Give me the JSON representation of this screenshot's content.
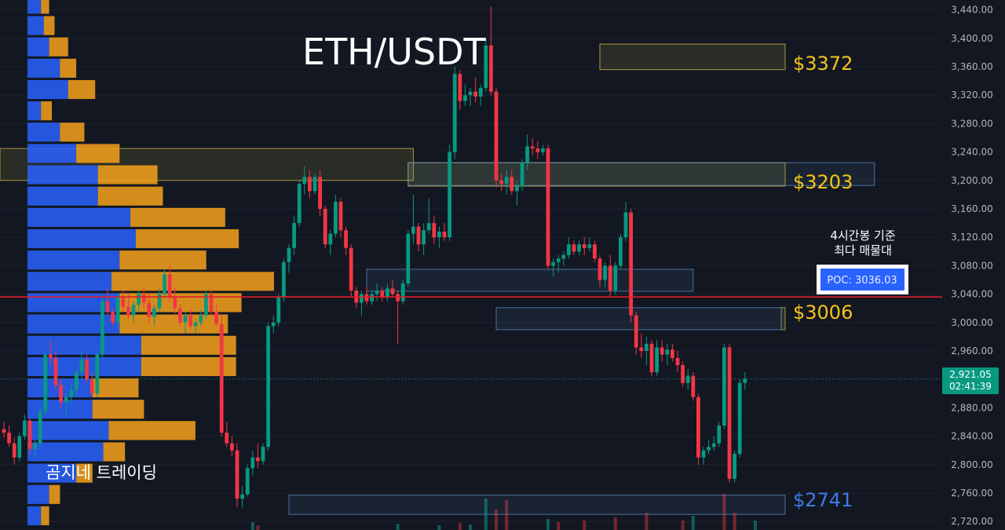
{
  "chart_data": {
    "type": "candlestick",
    "title": "ETH/USDT",
    "watermark": "곰지네 트레이딩",
    "colors": {
      "background": "#131722",
      "up": "#089981",
      "down": "#f23645",
      "volume_profile_up": "#2962ff",
      "volume_profile_down": "#f7a21b",
      "poc_line": "#e11d2b",
      "zone_yellow": "#d8c24a",
      "zone_blue": "#5a8fc7",
      "level_yellow": "#f5c518",
      "level_blue": "#3d7ce8"
    },
    "y_axis": {
      "range": [
        2708,
        3454
      ],
      "ticks": [
        "3,440.00",
        "3,400.00",
        "3,360.00",
        "3,320.00",
        "3,280.00",
        "3,240.00",
        "3,200.00",
        "3,160.00",
        "3,120.00",
        "3,080.00",
        "3,040.00",
        "3,000.00",
        "2,960.00",
        "2,920.00",
        "2,880.00",
        "2,840.00",
        "2,800.00",
        "2,760.00",
        "2,720.00"
      ],
      "tick_values": [
        3440,
        3400,
        3360,
        3320,
        3280,
        3240,
        3200,
        3160,
        3120,
        3080,
        3040,
        3000,
        2960,
        2920,
        2880,
        2840,
        2800,
        2760,
        2720
      ]
    },
    "current_price": {
      "value": 2921.05,
      "label": "2,921.05",
      "countdown": "02:41:39"
    },
    "levels": [
      {
        "label": "$3372",
        "price": 3372,
        "color": "#f5c518"
      },
      {
        "label": "$3203",
        "price": 3203,
        "color": "#f5c518"
      },
      {
        "label": "$3006",
        "price": 3006,
        "color": "#f5c518"
      },
      {
        "label": "$2741",
        "price": 2741,
        "color": "#3d7ce8"
      }
    ],
    "zones": [
      {
        "color": "yellow",
        "low": 3356,
        "high": 3392,
        "from_bar": 115
      },
      {
        "color": "yellow",
        "low": 3192,
        "high": 3225,
        "from_bar": 78
      },
      {
        "color": "yellow",
        "low": 3200,
        "high": 3245,
        "from_bar": -1,
        "to_bar": 79
      },
      {
        "color": "yellow",
        "low": 2990,
        "high": 3021,
        "from_bar": 150
      },
      {
        "color": "blue",
        "low": 3193,
        "high": 3225,
        "from_bar": 78,
        "to_bar": 168
      },
      {
        "color": "blue",
        "low": 3044,
        "high": 3075,
        "from_bar": 70,
        "to_bar": 133
      },
      {
        "color": "blue",
        "low": 2990,
        "high": 3021,
        "from_bar": 95,
        "to_bar": 150
      },
      {
        "color": "blue",
        "low": 2730,
        "high": 2757,
        "from_bar": 55
      }
    ],
    "poc": {
      "price": 3036.03,
      "label": "POC: 3036.03",
      "caption_line1": "4시간봉 기준",
      "caption_line2": "최다 매물대"
    },
    "volume_profile": [
      {
        "price": 3448,
        "up": 5,
        "down": 3
      },
      {
        "price": 3418,
        "up": 6,
        "down": 4
      },
      {
        "price": 3388,
        "up": 8,
        "down": 7
      },
      {
        "price": 3358,
        "up": 12,
        "down": 6
      },
      {
        "price": 3328,
        "up": 15,
        "down": 10
      },
      {
        "price": 3298,
        "up": 5,
        "down": 4
      },
      {
        "price": 3268,
        "up": 12,
        "down": 9
      },
      {
        "price": 3238,
        "up": 18,
        "down": 16
      },
      {
        "price": 3208,
        "up": 26,
        "down": 22
      },
      {
        "price": 3178,
        "up": 26,
        "down": 24
      },
      {
        "price": 3148,
        "up": 38,
        "down": 35
      },
      {
        "price": 3118,
        "up": 40,
        "down": 38
      },
      {
        "price": 3088,
        "up": 34,
        "down": 32
      },
      {
        "price": 3058,
        "up": 31,
        "down": 60
      },
      {
        "price": 3028,
        "up": 34,
        "down": 45
      },
      {
        "price": 2998,
        "up": 34,
        "down": 40
      },
      {
        "price": 2968,
        "up": 42,
        "down": 35
      },
      {
        "price": 2938,
        "up": 42,
        "down": 35
      },
      {
        "price": 2908,
        "up": 24,
        "down": 17
      },
      {
        "price": 2878,
        "up": 24,
        "down": 19
      },
      {
        "price": 2848,
        "up": 30,
        "down": 32
      },
      {
        "price": 2818,
        "up": 28,
        "down": 8
      },
      {
        "price": 2788,
        "up": 18,
        "down": 6
      },
      {
        "price": 2758,
        "up": 8,
        "down": 4
      },
      {
        "price": 2728,
        "up": 5,
        "down": 3
      }
    ],
    "candles": [
      [
        2850,
        2860,
        2838,
        2845
      ],
      [
        2845,
        2855,
        2825,
        2830
      ],
      [
        2830,
        2838,
        2800,
        2810
      ],
      [
        2810,
        2845,
        2805,
        2840
      ],
      [
        2840,
        2870,
        2835,
        2862
      ],
      [
        2862,
        2865,
        2815,
        2822
      ],
      [
        2822,
        2835,
        2810,
        2830
      ],
      [
        2830,
        2880,
        2825,
        2875
      ],
      [
        2875,
        2960,
        2870,
        2955
      ],
      [
        2955,
        2975,
        2940,
        2950
      ],
      [
        2950,
        2960,
        2905,
        2912
      ],
      [
        2912,
        2920,
        2880,
        2888
      ],
      [
        2888,
        2900,
        2870,
        2895
      ],
      [
        2895,
        2915,
        2885,
        2905
      ],
      [
        2905,
        2935,
        2895,
        2930
      ],
      [
        2930,
        2960,
        2920,
        2948
      ],
      [
        2948,
        2955,
        2915,
        2920
      ],
      [
        2920,
        2930,
        2895,
        2900
      ],
      [
        2900,
        2960,
        2895,
        2955
      ],
      [
        2955,
        3040,
        2950,
        3030
      ],
      [
        3030,
        3048,
        3010,
        3015
      ],
      [
        3015,
        3020,
        2995,
        3000
      ],
      [
        3000,
        3040,
        2990,
        3035
      ],
      [
        3035,
        3045,
        3015,
        3022
      ],
      [
        3022,
        3040,
        3005,
        3010
      ],
      [
        3010,
        3030,
        3000,
        3025
      ],
      [
        3025,
        3045,
        3015,
        3040
      ],
      [
        3040,
        3050,
        3020,
        3028
      ],
      [
        3028,
        3040,
        3000,
        3008
      ],
      [
        3008,
        3025,
        2995,
        3020
      ],
      [
        3020,
        3048,
        3015,
        3040
      ],
      [
        3040,
        3075,
        3035,
        3068
      ],
      [
        3068,
        3080,
        3030,
        3035
      ],
      [
        3035,
        3050,
        3012,
        3020
      ],
      [
        3020,
        3025,
        2995,
        3000
      ],
      [
        3000,
        3015,
        2985,
        3010
      ],
      [
        3010,
        3020,
        2990,
        2995
      ],
      [
        2995,
        3005,
        2985,
        3000
      ],
      [
        3000,
        3018,
        2995,
        3010
      ],
      [
        3010,
        3045,
        3005,
        3040
      ],
      [
        3040,
        3045,
        3010,
        3015
      ],
      [
        3015,
        3025,
        2995,
        2998
      ],
      [
        2998,
        3010,
        2840,
        2845
      ],
      [
        2845,
        2860,
        2825,
        2830
      ],
      [
        2830,
        2840,
        2812,
        2820
      ],
      [
        2820,
        2830,
        2740,
        2752
      ],
      [
        2752,
        2770,
        2740,
        2758
      ],
      [
        2758,
        2800,
        2755,
        2795
      ],
      [
        2795,
        2820,
        2785,
        2810
      ],
      [
        2810,
        2830,
        2795,
        2805
      ],
      [
        2805,
        2830,
        2800,
        2825
      ],
      [
        2825,
        3000,
        2820,
        2995
      ],
      [
        2995,
        3010,
        2985,
        3000
      ],
      [
        3000,
        3040,
        2995,
        3035
      ],
      [
        3035,
        3090,
        3030,
        3085
      ],
      [
        3085,
        3110,
        3070,
        3105
      ],
      [
        3105,
        3150,
        3095,
        3140
      ],
      [
        3140,
        3200,
        3135,
        3195
      ],
      [
        3195,
        3220,
        3180,
        3205
      ],
      [
        3205,
        3215,
        3175,
        3185
      ],
      [
        3185,
        3210,
        3180,
        3205
      ],
      [
        3205,
        3215,
        3150,
        3160
      ],
      [
        3160,
        3165,
        3105,
        3110
      ],
      [
        3110,
        3130,
        3095,
        3125
      ],
      [
        3125,
        3180,
        3120,
        3170
      ],
      [
        3170,
        3175,
        3120,
        3130
      ],
      [
        3130,
        3135,
        3095,
        3105
      ],
      [
        3105,
        3110,
        3035,
        3045
      ],
      [
        3045,
        3050,
        3020,
        3028
      ],
      [
        3028,
        3045,
        3010,
        3040
      ],
      [
        3040,
        3050,
        3025,
        3030
      ],
      [
        3030,
        3045,
        3025,
        3040
      ],
      [
        3040,
        3055,
        3030,
        3045
      ],
      [
        3045,
        3050,
        3030,
        3035
      ],
      [
        3035,
        3055,
        3030,
        3048
      ],
      [
        3048,
        3060,
        3035,
        3040
      ],
      [
        3040,
        3045,
        2970,
        3030
      ],
      [
        3030,
        3060,
        3025,
        3055
      ],
      [
        3055,
        3130,
        3050,
        3125
      ],
      [
        3125,
        3180,
        3110,
        3135
      ],
      [
        3135,
        3140,
        3100,
        3110
      ],
      [
        3110,
        3140,
        3095,
        3130
      ],
      [
        3130,
        3175,
        3125,
        3140
      ],
      [
        3140,
        3150,
        3110,
        3120
      ],
      [
        3120,
        3135,
        3105,
        3128
      ],
      [
        3128,
        3140,
        3115,
        3120
      ],
      [
        3120,
        3250,
        3115,
        3240
      ],
      [
        3240,
        3360,
        3230,
        3350
      ],
      [
        3350,
        3355,
        3300,
        3312
      ],
      [
        3312,
        3335,
        3305,
        3320
      ],
      [
        3320,
        3330,
        3305,
        3325
      ],
      [
        3325,
        3345,
        3310,
        3318
      ],
      [
        3318,
        3335,
        3305,
        3330
      ],
      [
        3330,
        3400,
        3325,
        3390
      ],
      [
        3390,
        3445,
        3320,
        3325
      ],
      [
        3325,
        3330,
        3190,
        3200
      ],
      [
        3200,
        3210,
        3185,
        3195
      ],
      [
        3195,
        3215,
        3180,
        3205
      ],
      [
        3205,
        3215,
        3180,
        3185
      ],
      [
        3185,
        3200,
        3165,
        3192
      ],
      [
        3192,
        3230,
        3185,
        3225
      ],
      [
        3225,
        3265,
        3215,
        3248
      ],
      [
        3248,
        3260,
        3235,
        3245
      ],
      [
        3245,
        3255,
        3230,
        3240
      ],
      [
        3240,
        3250,
        3235,
        3245
      ],
      [
        3245,
        3250,
        3075,
        3080
      ],
      [
        3080,
        3090,
        3065,
        3085
      ],
      [
        3085,
        3095,
        3070,
        3090
      ],
      [
        3090,
        3100,
        3080,
        3095
      ],
      [
        3095,
        3120,
        3090,
        3110
      ],
      [
        3110,
        3115,
        3095,
        3100
      ],
      [
        3100,
        3115,
        3095,
        3110
      ],
      [
        3110,
        3120,
        3095,
        3105
      ],
      [
        3105,
        3120,
        3100,
        3110
      ],
      [
        3110,
        3115,
        3085,
        3090
      ],
      [
        3090,
        3095,
        3050,
        3060
      ],
      [
        3060,
        3085,
        3050,
        3080
      ],
      [
        3080,
        3095,
        3035,
        3045
      ],
      [
        3045,
        3085,
        3040,
        3080
      ],
      [
        3080,
        3125,
        3075,
        3120
      ],
      [
        3120,
        3170,
        3115,
        3155
      ],
      [
        3155,
        3160,
        3000,
        3010
      ],
      [
        3010,
        3015,
        2955,
        2965
      ],
      [
        2965,
        2985,
        2950,
        2960
      ],
      [
        2960,
        2980,
        2940,
        2970
      ],
      [
        2970,
        2975,
        2925,
        2930
      ],
      [
        2930,
        2975,
        2925,
        2965
      ],
      [
        2965,
        2975,
        2945,
        2955
      ],
      [
        2955,
        2970,
        2940,
        2962
      ],
      [
        2962,
        2970,
        2945,
        2950
      ],
      [
        2950,
        2960,
        2930,
        2940
      ],
      [
        2940,
        2945,
        2910,
        2915
      ],
      [
        2915,
        2935,
        2905,
        2925
      ],
      [
        2925,
        2930,
        2890,
        2895
      ],
      [
        2895,
        2900,
        2800,
        2810
      ],
      [
        2810,
        2825,
        2800,
        2820
      ],
      [
        2820,
        2835,
        2815,
        2825
      ],
      [
        2825,
        2840,
        2820,
        2830
      ],
      [
        2830,
        2860,
        2825,
        2855
      ],
      [
        2855,
        2970,
        2850,
        2965
      ],
      [
        2965,
        2970,
        2775,
        2780
      ],
      [
        2780,
        2820,
        2775,
        2815
      ],
      [
        2815,
        2920,
        2810,
        2915
      ],
      [
        2915,
        2930,
        2905,
        2921.05
      ]
    ],
    "volume_bars": [
      {
        "bar": 48,
        "h": 10,
        "up": true
      },
      {
        "bar": 49,
        "h": 6,
        "up": false
      },
      {
        "bar": 76,
        "h": 8,
        "up": true
      },
      {
        "bar": 84,
        "h": 6,
        "up": true
      },
      {
        "bar": 88,
        "h": 9,
        "up": false
      },
      {
        "bar": 90,
        "h": 7,
        "up": true
      },
      {
        "bar": 93,
        "h": 40,
        "up": true
      },
      {
        "bar": 95,
        "h": 26,
        "up": false
      },
      {
        "bar": 97,
        "h": 38,
        "up": false
      },
      {
        "bar": 105,
        "h": 14,
        "up": true
      },
      {
        "bar": 107,
        "h": 10,
        "up": false
      },
      {
        "bar": 112,
        "h": 12,
        "up": false
      },
      {
        "bar": 118,
        "h": 16,
        "up": false
      },
      {
        "bar": 124,
        "h": 22,
        "up": false
      },
      {
        "bar": 131,
        "h": 12,
        "up": false
      },
      {
        "bar": 133,
        "h": 18,
        "up": true
      },
      {
        "bar": 139,
        "h": 46,
        "up": false
      },
      {
        "bar": 141,
        "h": 22,
        "up": false
      },
      {
        "bar": 145,
        "h": 12,
        "up": true
      }
    ]
  }
}
